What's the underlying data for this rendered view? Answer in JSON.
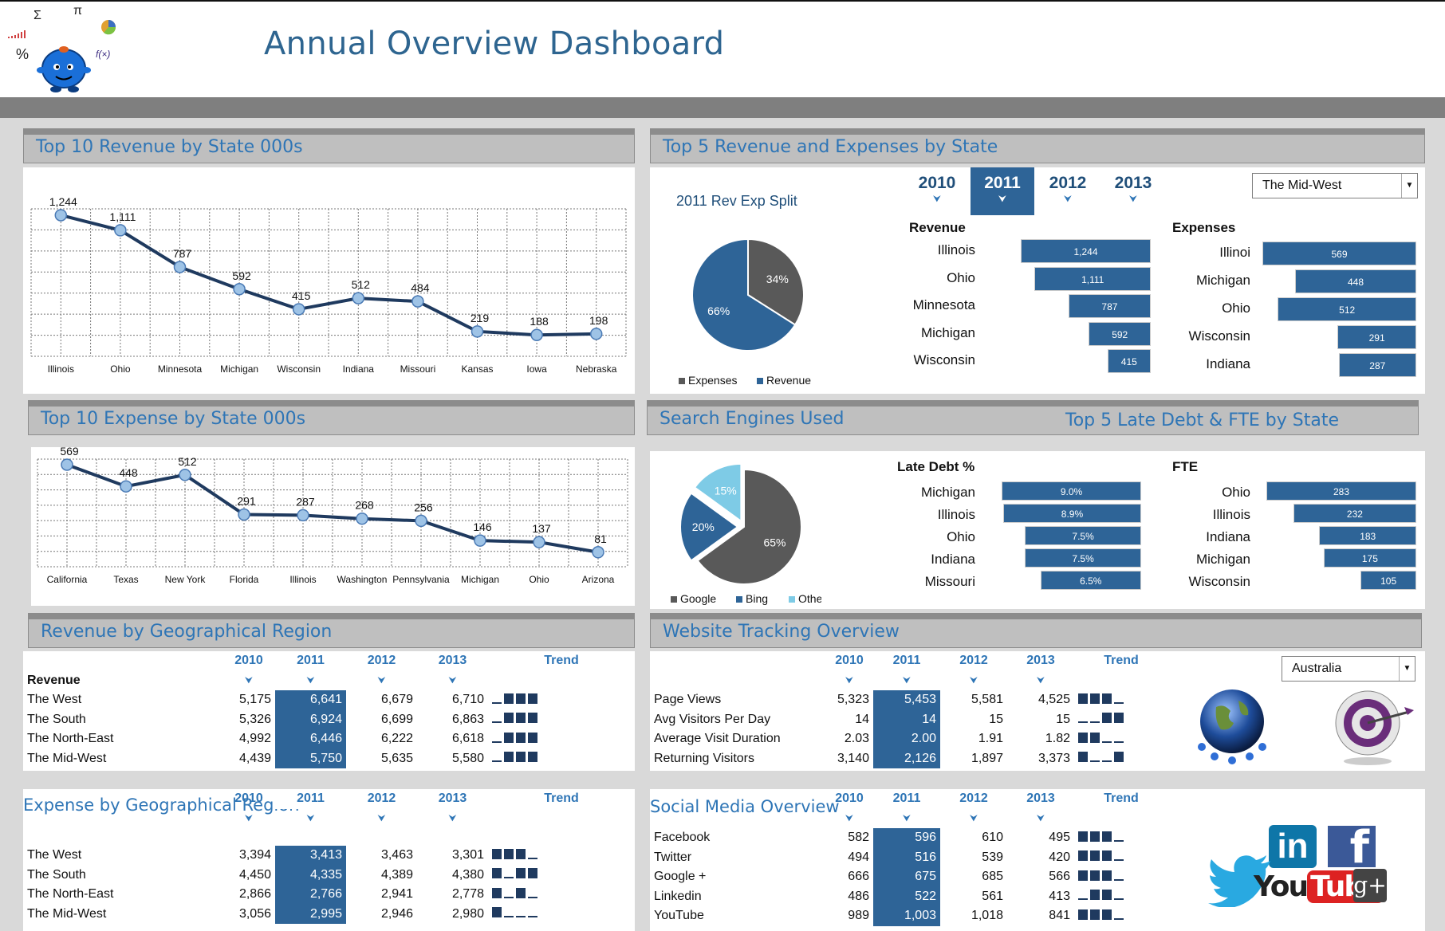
{
  "title": "Annual Overview Dashboard",
  "colors": {
    "accent": "#2e6497",
    "title": "#2e6590",
    "panel_head": "#bfbfbf"
  },
  "logo": {
    "icon": "math-mascot-logo",
    "symbols": [
      "Σ",
      "π",
      "%",
      "f(x)"
    ]
  },
  "rev_state": {
    "heading": "Top 10 Revenue by State 000s",
    "chart_data": {
      "type": "line",
      "categories": [
        "Illinois",
        "Ohio",
        "Minnesota",
        "Michigan",
        "Wisconsin",
        "Indiana",
        "Missouri",
        "Kansas",
        "Iowa",
        "Nebraska"
      ],
      "values": [
        1244,
        1111,
        787,
        592,
        415,
        512,
        484,
        219,
        188,
        198
      ],
      "labels": [
        "1,244",
        "1,111",
        "787",
        "592",
        "415",
        "512",
        "484",
        "219",
        "188",
        "198"
      ],
      "ylim": [
        0,
        1300
      ],
      "grid": true
    }
  },
  "rev_exp_state": {
    "heading": "Top 5 Revenue and Expenses by State",
    "years": [
      "2010",
      "2011",
      "2012",
      "2013"
    ],
    "selected_year": "2011",
    "region_select": "The Mid-West",
    "pie_title": "2011 Rev Exp Split",
    "pie": {
      "type": "pie",
      "slices": [
        {
          "name": "Expenses",
          "value": 34,
          "label": "34%",
          "color": "#595959"
        },
        {
          "name": "Revenue",
          "value": 66,
          "label": "66%",
          "color": "#2e6497"
        }
      ]
    },
    "revenue_label": "Revenue",
    "expenses_label": "Expenses",
    "revenue": [
      {
        "state": "Illinois",
        "value": 1244,
        "label": "1,244"
      },
      {
        "state": "Ohio",
        "value": 1111,
        "label": "1,111"
      },
      {
        "state": "Minnesota",
        "value": 787,
        "label": "787"
      },
      {
        "state": "Michigan",
        "value": 592,
        "label": "592"
      },
      {
        "state": "Wisconsin",
        "value": 415,
        "label": "415"
      }
    ],
    "expenses": [
      {
        "state": "Illinoi",
        "value": 569,
        "label": "569"
      },
      {
        "state": "Michigan",
        "value": 448,
        "label": "448"
      },
      {
        "state": "Ohio",
        "value": 512,
        "label": "512"
      },
      {
        "state": "Wisconsin",
        "value": 291,
        "label": "291"
      },
      {
        "state": "Indiana",
        "value": 287,
        "label": "287"
      }
    ]
  },
  "exp_state": {
    "heading": "Top 10 Expense by State 000s",
    "chart_data": {
      "type": "line",
      "categories": [
        "California",
        "Texas",
        "New York",
        "Florida",
        "Illinois",
        "Washington",
        "Pennsylvania",
        "Michigan",
        "Ohio",
        "Arizona"
      ],
      "values": [
        569,
        448,
        512,
        291,
        287,
        268,
        256,
        146,
        137,
        81
      ],
      "labels": [
        "569",
        "448",
        "512",
        "291",
        "287",
        "268",
        "256",
        "146",
        "137",
        "81"
      ],
      "ylim": [
        0,
        600
      ],
      "grid": true
    }
  },
  "search": {
    "heading": "Search Engines Used",
    "heading2": "Top 5 Late Debt & FTE by State",
    "pie": {
      "type": "pie",
      "slices": [
        {
          "name": "Google",
          "value": 65,
          "label": "65%",
          "color": "#595959"
        },
        {
          "name": "Bing",
          "value": 20,
          "label": "20%",
          "color": "#2e6497"
        },
        {
          "name": "Other",
          "value": 15,
          "label": "15%",
          "color": "#7ecbe6"
        }
      ]
    },
    "late_label": "Late Debt %",
    "fte_label": "FTE",
    "late": [
      {
        "state": "Michigan",
        "value": 9.0,
        "label": "9.0%"
      },
      {
        "state": "Illinois",
        "value": 8.9,
        "label": "8.9%"
      },
      {
        "state": "Ohio",
        "value": 7.5,
        "label": "7.5%"
      },
      {
        "state": "Indiana",
        "value": 7.5,
        "label": "7.5%"
      },
      {
        "state": "Missouri",
        "value": 6.5,
        "label": "6.5%"
      }
    ],
    "fte": [
      {
        "state": "Ohio",
        "value": 283,
        "label": "283"
      },
      {
        "state": "Illinois",
        "value": 232,
        "label": "232"
      },
      {
        "state": "Indiana",
        "value": 183,
        "label": "183"
      },
      {
        "state": "Michigan",
        "value": 175,
        "label": "175"
      },
      {
        "state": "Wisconsin",
        "value": 105,
        "label": "105"
      }
    ]
  },
  "geo_rev": {
    "heading": "Revenue by Geographical Region",
    "cols": [
      "2010",
      "2011",
      "2012",
      "2013",
      "Trend"
    ],
    "section": "Revenue",
    "rows": [
      {
        "name": "The West",
        "v": [
          "5,175",
          "6,641",
          "6,679",
          "6,710"
        ],
        "trend": [
          0,
          1,
          1,
          1
        ]
      },
      {
        "name": "The South",
        "v": [
          "5,326",
          "6,924",
          "6,699",
          "6,863"
        ],
        "trend": [
          0,
          1,
          1,
          1
        ]
      },
      {
        "name": "The North-East",
        "v": [
          "4,992",
          "6,446",
          "6,222",
          "6,618"
        ],
        "trend": [
          0,
          1,
          1,
          1
        ]
      },
      {
        "name": "The Mid-West",
        "v": [
          "4,439",
          "5,750",
          "5,635",
          "5,580"
        ],
        "trend": [
          0,
          1,
          1,
          1
        ]
      }
    ]
  },
  "geo_exp": {
    "heading": "Expense by Geographical Region",
    "cols": [
      "2010",
      "2011",
      "2012",
      "2013",
      "Trend"
    ],
    "rows": [
      {
        "name": "The West",
        "v": [
          "3,394",
          "3,413",
          "3,463",
          "3,301"
        ],
        "trend": [
          1,
          1,
          1,
          0
        ]
      },
      {
        "name": "The South",
        "v": [
          "4,450",
          "4,335",
          "4,389",
          "4,380"
        ],
        "trend": [
          1,
          0,
          1,
          1
        ]
      },
      {
        "name": "The North-East",
        "v": [
          "2,866",
          "2,766",
          "2,941",
          "2,778"
        ],
        "trend": [
          1,
          0,
          1,
          0
        ]
      },
      {
        "name": "The Mid-West",
        "v": [
          "3,056",
          "2,995",
          "2,946",
          "2,980"
        ],
        "trend": [
          1,
          0,
          0,
          0
        ]
      }
    ]
  },
  "web": {
    "heading": "Website Tracking Overview",
    "cols": [
      "2010",
      "2011",
      "2012",
      "2013",
      "Trend"
    ],
    "country_select": "Australia",
    "rows": [
      {
        "name": "Page Views",
        "v": [
          "5,323",
          "5,453",
          "5,581",
          "4,525"
        ],
        "trend": [
          1,
          1,
          1,
          0
        ]
      },
      {
        "name": "Avg Visitors Per Day",
        "v": [
          "14",
          "14",
          "15",
          "15"
        ],
        "trend": [
          0,
          0,
          1,
          1
        ]
      },
      {
        "name": "Average Visit Duration",
        "v": [
          "2.03",
          "2.00",
          "1.91",
          "1.82"
        ],
        "trend": [
          1,
          1,
          0,
          0
        ]
      },
      {
        "name": "Returning Visitors",
        "v": [
          "3,140",
          "2,126",
          "1,897",
          "3,373"
        ],
        "trend": [
          1,
          0,
          0,
          1
        ]
      }
    ],
    "icons": [
      "globe-people-icon",
      "target-icon"
    ]
  },
  "social": {
    "heading": "Social Media Overview",
    "cols": [
      "2010",
      "2011",
      "2012",
      "2013",
      "Trend"
    ],
    "rows": [
      {
        "name": "Facebook",
        "v": [
          "582",
          "596",
          "610",
          "495"
        ],
        "trend": [
          1,
          1,
          1,
          0
        ]
      },
      {
        "name": "Twitter",
        "v": [
          "494",
          "516",
          "539",
          "420"
        ],
        "trend": [
          1,
          1,
          1,
          0
        ]
      },
      {
        "name": "Google +",
        "v": [
          "666",
          "675",
          "685",
          "566"
        ],
        "trend": [
          1,
          1,
          1,
          0
        ]
      },
      {
        "name": "Linkedin",
        "v": [
          "486",
          "522",
          "561",
          "413"
        ],
        "trend": [
          0,
          1,
          1,
          0
        ]
      },
      {
        "name": "YouTube",
        "v": [
          "989",
          "1,003",
          "1,018",
          "841"
        ],
        "trend": [
          1,
          1,
          1,
          0
        ]
      }
    ],
    "logos": {
      "linkedin": "in",
      "facebook": "f",
      "youtube_a": "You",
      "youtube_b": "Tube",
      "gplus": "g+"
    }
  }
}
